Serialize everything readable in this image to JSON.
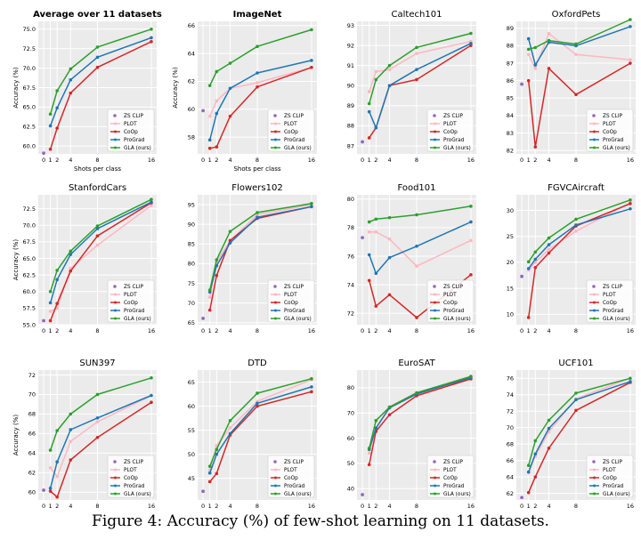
{
  "caption": "Figure 4: Accuracy (%) of few-shot learning on 11 datasets.",
  "chart_data": [
    {
      "type": "line",
      "title": "Average over 11 datasets",
      "title_bold": true,
      "xlabel": "Shots per class",
      "ylabel": "Accuracy (%)",
      "x": [
        1,
        2,
        4,
        8,
        16
      ],
      "xticks": [
        0,
        1,
        2,
        4,
        8,
        16
      ],
      "xlim": [
        -0.8,
        16.8
      ],
      "ylim": [
        59.0,
        76.0
      ],
      "yticks": [
        60.0,
        62.5,
        65.0,
        67.5,
        70.0,
        72.5,
        75.0
      ],
      "ytick_labels": [
        "60.0",
        "62.5",
        "65.0",
        "67.5",
        "70.0",
        "72.5",
        "75.0"
      ],
      "zs_clip": 59.1,
      "series": [
        {
          "name": "PLOT",
          "color": "#ffb6c1",
          "values": [
            null,
            null,
            null,
            null,
            null
          ]
        },
        {
          "name": "CoOp",
          "color": "#d62728",
          "values": [
            59.6,
            62.3,
            66.8,
            70.1,
            73.4
          ]
        },
        {
          "name": "ProGrad",
          "color": "#1f77b4",
          "values": [
            62.6,
            64.9,
            68.5,
            71.4,
            73.9
          ]
        },
        {
          "name": "GLA (ours)",
          "color": "#2ca02c",
          "values": [
            64.1,
            67.1,
            69.9,
            72.7,
            75.0
          ]
        }
      ]
    },
    {
      "type": "line",
      "title": "ImageNet",
      "title_bold": true,
      "xlabel": "Shots per class",
      "ylabel": "Accuracy (%)",
      "x": [
        1,
        2,
        4,
        8,
        16
      ],
      "xticks": [
        0,
        1,
        2,
        4,
        8,
        16
      ],
      "xlim": [
        -0.8,
        16.8
      ],
      "ylim": [
        56.8,
        66.3
      ],
      "yticks": [
        58,
        60,
        62,
        64,
        66
      ],
      "ytick_labels": [
        "58",
        "60",
        "62",
        "64",
        "66"
      ],
      "zs_clip": 59.9,
      "series": [
        {
          "name": "PLOT",
          "color": "#ffb6c1",
          "values": [
            59.5,
            60.6,
            61.5,
            61.9,
            63.0
          ]
        },
        {
          "name": "CoOp",
          "color": "#d62728",
          "values": [
            57.2,
            57.3,
            59.5,
            61.6,
            63.0
          ]
        },
        {
          "name": "ProGrad",
          "color": "#1f77b4",
          "values": [
            57.8,
            59.7,
            61.5,
            62.6,
            63.5
          ]
        },
        {
          "name": "GLA (ours)",
          "color": "#2ca02c",
          "values": [
            61.7,
            62.7,
            63.3,
            64.5,
            65.7
          ]
        }
      ]
    },
    {
      "type": "line",
      "title": "Caltech101",
      "title_bold": false,
      "xlabel": "",
      "ylabel": "",
      "x": [
        1,
        2,
        4,
        8,
        16
      ],
      "xticks": [
        0,
        1,
        2,
        4,
        8,
        16
      ],
      "xlim": [
        -0.8,
        16.8
      ],
      "ylim": [
        86.6,
        93.2
      ],
      "yticks": [
        87,
        88,
        89,
        90,
        91,
        92,
        93
      ],
      "ytick_labels": [
        "87",
        "88",
        "89",
        "90",
        "91",
        "92",
        "93"
      ],
      "zs_clip": 87.2,
      "series": [
        {
          "name": "PLOT",
          "color": "#ffb6c1",
          "values": [
            89.7,
            90.7,
            90.8,
            91.6,
            92.2
          ]
        },
        {
          "name": "CoOp",
          "color": "#d62728",
          "values": [
            87.4,
            87.9,
            90.0,
            90.3,
            92.0
          ]
        },
        {
          "name": "ProGrad",
          "color": "#1f77b4",
          "values": [
            88.7,
            87.9,
            90.0,
            90.8,
            92.1
          ]
        },
        {
          "name": "GLA (ours)",
          "color": "#2ca02c",
          "values": [
            89.1,
            90.3,
            91.0,
            91.9,
            92.6
          ]
        }
      ]
    },
    {
      "type": "line",
      "title": "OxfordPets",
      "title_bold": false,
      "xlabel": "",
      "ylabel": "",
      "x": [
        1,
        2,
        4,
        8,
        16
      ],
      "xticks": [
        0,
        1,
        2,
        4,
        8,
        16
      ],
      "xlim": [
        -0.8,
        16.8
      ],
      "ylim": [
        81.8,
        89.4
      ],
      "yticks": [
        82,
        83,
        84,
        85,
        86,
        87,
        88,
        89
      ],
      "ytick_labels": [
        "82",
        "83",
        "84",
        "85",
        "86",
        "87",
        "88",
        "89"
      ],
      "zs_clip": 85.8,
      "series": [
        {
          "name": "PLOT",
          "color": "#ffb6c1",
          "values": [
            87.5,
            86.7,
            88.7,
            87.5,
            87.2
          ]
        },
        {
          "name": "CoOp",
          "color": "#d62728",
          "values": [
            86.0,
            82.2,
            86.7,
            85.2,
            87.0
          ]
        },
        {
          "name": "ProGrad",
          "color": "#1f77b4",
          "values": [
            88.4,
            86.9,
            88.2,
            88.0,
            89.1
          ]
        },
        {
          "name": "GLA (ours)",
          "color": "#2ca02c",
          "values": [
            87.8,
            87.9,
            88.3,
            88.1,
            89.5
          ]
        }
      ]
    },
    {
      "type": "line",
      "title": "StanfordCars",
      "title_bold": false,
      "xlabel": "",
      "ylabel": "Accuracy (%)",
      "x": [
        1,
        2,
        4,
        8,
        16
      ],
      "xticks": [
        0,
        1,
        2,
        4,
        8,
        16
      ],
      "xlim": [
        -0.8,
        16.8
      ],
      "ylim": [
        55.0,
        74.6
      ],
      "yticks": [
        55.0,
        57.5,
        60.0,
        62.5,
        65.0,
        67.5,
        70.0,
        72.5
      ],
      "ytick_labels": [
        "55.0",
        "57.5",
        "60.0",
        "62.5",
        "65.0",
        "67.5",
        "70.0",
        "72.5"
      ],
      "zs_clip": 55.6,
      "series": [
        {
          "name": "PLOT",
          "color": "#ffb6c1",
          "values": [
            57.0,
            57.5,
            63.5,
            67.0,
            73.0
          ]
        },
        {
          "name": "CoOp",
          "color": "#d62728",
          "values": [
            55.6,
            58.2,
            63.1,
            68.4,
            73.4
          ]
        },
        {
          "name": "ProGrad",
          "color": "#1f77b4",
          "values": [
            58.3,
            61.8,
            65.6,
            69.5,
            73.5
          ]
        },
        {
          "name": "GLA (ours)",
          "color": "#2ca02c",
          "values": [
            60.0,
            63.2,
            66.1,
            69.9,
            73.9
          ]
        }
      ]
    },
    {
      "type": "line",
      "title": "Flowers102",
      "title_bold": false,
      "xlabel": "",
      "ylabel": "",
      "x": [
        1,
        2,
        4,
        8,
        16
      ],
      "xticks": [
        0,
        1,
        2,
        4,
        8,
        16
      ],
      "xlim": [
        -0.8,
        16.8
      ],
      "ylim": [
        64.5,
        97.5
      ],
      "yticks": [
        65,
        70,
        75,
        80,
        85,
        90,
        95
      ],
      "ytick_labels": [
        "65",
        "70",
        "75",
        "80",
        "85",
        "90",
        "95"
      ],
      "zs_clip": 66.1,
      "series": [
        {
          "name": "PLOT",
          "color": "#ffb6c1",
          "values": [
            71.5,
            80.5,
            85.8,
            92.5,
            95.0
          ]
        },
        {
          "name": "CoOp",
          "color": "#d62728",
          "values": [
            68.2,
            77.0,
            85.9,
            91.5,
            94.5
          ]
        },
        {
          "name": "ProGrad",
          "color": "#1f77b4",
          "values": [
            72.8,
            79.5,
            85.3,
            91.8,
            94.5
          ]
        },
        {
          "name": "GLA (ours)",
          "color": "#2ca02c",
          "values": [
            73.3,
            81.0,
            88.2,
            93.0,
            95.3
          ]
        }
      ]
    },
    {
      "type": "line",
      "title": "Food101",
      "title_bold": false,
      "xlabel": "",
      "ylabel": "",
      "x": [
        1,
        2,
        4,
        8,
        16
      ],
      "xticks": [
        0,
        1,
        2,
        4,
        8,
        16
      ],
      "xlim": [
        -0.8,
        16.8
      ],
      "ylim": [
        71.2,
        80.3
      ],
      "yticks": [
        72,
        74,
        76,
        78,
        80
      ],
      "ytick_labels": [
        "72",
        "74",
        "76",
        "78",
        "80"
      ],
      "zs_clip": 77.3,
      "series": [
        {
          "name": "PLOT",
          "color": "#ffb6c1",
          "values": [
            77.7,
            77.7,
            77.2,
            75.3,
            77.1
          ]
        },
        {
          "name": "CoOp",
          "color": "#d62728",
          "values": [
            74.3,
            72.5,
            73.3,
            71.7,
            74.7
          ]
        },
        {
          "name": "ProGrad",
          "color": "#1f77b4",
          "values": [
            76.1,
            74.8,
            75.9,
            76.7,
            78.4
          ]
        },
        {
          "name": "GLA (ours)",
          "color": "#2ca02c",
          "values": [
            78.4,
            78.6,
            78.7,
            78.9,
            79.5
          ]
        }
      ]
    },
    {
      "type": "line",
      "title": "FGVCAircraft",
      "title_bold": false,
      "xlabel": "",
      "ylabel": "",
      "x": [
        1,
        2,
        4,
        8,
        16
      ],
      "xticks": [
        0,
        1,
        2,
        4,
        8,
        16
      ],
      "xlim": [
        -0.8,
        16.8
      ],
      "ylim": [
        8.0,
        33.0
      ],
      "yticks": [
        10,
        15,
        20,
        25,
        30
      ],
      "ytick_labels": [
        "10",
        "15",
        "20",
        "25",
        "30"
      ],
      "zs_clip": 17.3,
      "series": [
        {
          "name": "PLOT",
          "color": "#ffb6c1",
          "values": [
            18.5,
            20.0,
            22.5,
            26.0,
            31.5
          ]
        },
        {
          "name": "CoOp",
          "color": "#d62728",
          "values": [
            9.4,
            19.0,
            21.8,
            27.0,
            31.3
          ]
        },
        {
          "name": "ProGrad",
          "color": "#1f77b4",
          "values": [
            18.8,
            20.6,
            23.4,
            27.2,
            30.3
          ]
        },
        {
          "name": "GLA (ours)",
          "color": "#2ca02c",
          "values": [
            20.1,
            22.0,
            24.7,
            28.3,
            32.0
          ]
        }
      ]
    },
    {
      "type": "line",
      "title": "SUN397",
      "title_bold": false,
      "xlabel": "Shots per class",
      "ylabel": "Accuracy (%)",
      "x": [
        1,
        2,
        4,
        8,
        16
      ],
      "xticks": [
        0,
        1,
        2,
        4,
        8,
        16
      ],
      "xlim": [
        -0.8,
        16.8
      ],
      "ylim": [
        59.2,
        72.5
      ],
      "yticks": [
        60,
        62,
        64,
        66,
        68,
        70,
        72
      ],
      "ytick_labels": [
        "60",
        "62",
        "64",
        "66",
        "68",
        "70",
        "72"
      ],
      "zs_clip": 60.2,
      "series": [
        {
          "name": "PLOT",
          "color": "#ffb6c1",
          "values": [
            62.5,
            61.6,
            65.2,
            67.2,
            69.9
          ]
        },
        {
          "name": "CoOp",
          "color": "#d62728",
          "values": [
            60.1,
            59.5,
            63.3,
            65.6,
            69.2
          ]
        },
        {
          "name": "ProGrad",
          "color": "#1f77b4",
          "values": [
            60.4,
            63.1,
            66.4,
            67.6,
            69.9
          ]
        },
        {
          "name": "GLA (ours)",
          "color": "#2ca02c",
          "values": [
            64.3,
            66.3,
            68.0,
            70.0,
            71.7
          ]
        }
      ]
    },
    {
      "type": "line",
      "title": "DTD",
      "title_bold": false,
      "xlabel": "Shots per class",
      "ylabel": "",
      "x": [
        1,
        2,
        4,
        8,
        16
      ],
      "xticks": [
        0,
        1,
        2,
        4,
        8,
        16
      ],
      "xlim": [
        -0.8,
        16.8
      ],
      "ylim": [
        40.5,
        67.5
      ],
      "yticks": [
        45,
        50,
        55,
        60,
        65
      ],
      "ytick_labels": [
        "45",
        "50",
        "55",
        "60",
        "65"
      ],
      "zs_clip": 42.3,
      "series": [
        {
          "name": "PLOT",
          "color": "#ffb6c1",
          "values": [
            46.7,
            51.8,
            55.5,
            61.0,
            65.5
          ]
        },
        {
          "name": "CoOp",
          "color": "#d62728",
          "values": [
            44.3,
            46.0,
            54.0,
            60.0,
            63.0
          ]
        },
        {
          "name": "ProGrad",
          "color": "#1f77b4",
          "values": [
            46.1,
            50.0,
            54.3,
            60.6,
            64.0
          ]
        },
        {
          "name": "GLA (ours)",
          "color": "#2ca02c",
          "values": [
            47.5,
            51.0,
            57.0,
            62.7,
            65.7
          ]
        }
      ]
    },
    {
      "type": "line",
      "title": "EuroSAT",
      "title_bold": false,
      "xlabel": "Shots per class",
      "ylabel": "",
      "x": [
        1,
        2,
        4,
        8,
        16
      ],
      "xticks": [
        0,
        1,
        2,
        4,
        8,
        16
      ],
      "xlim": [
        -0.8,
        16.8
      ],
      "ylim": [
        35.5,
        87.0
      ],
      "yticks": [
        40,
        50,
        60,
        70,
        80
      ],
      "ytick_labels": [
        "40",
        "50",
        "60",
        "70",
        "80"
      ],
      "zs_clip": 37.6,
      "series": [
        {
          "name": "PLOT",
          "color": "#ffb6c1",
          "values": [
            54.0,
            64.0,
            72.5,
            78.0,
            83.5
          ]
        },
        {
          "name": "CoOp",
          "color": "#d62728",
          "values": [
            49.5,
            62.7,
            69.3,
            76.8,
            83.5
          ]
        },
        {
          "name": "ProGrad",
          "color": "#1f77b4",
          "values": [
            55.5,
            64.0,
            72.0,
            77.5,
            84.0
          ]
        },
        {
          "name": "GLA (ours)",
          "color": "#2ca02c",
          "values": [
            56.0,
            67.0,
            72.3,
            78.0,
            84.5
          ]
        }
      ]
    },
    {
      "type": "line",
      "title": "UCF101",
      "title_bold": false,
      "xlabel": "Shots per class",
      "ylabel": "",
      "x": [
        1,
        2,
        4,
        8,
        16
      ],
      "xticks": [
        0,
        1,
        2,
        4,
        8,
        16
      ],
      "xlim": [
        -0.8,
        16.8
      ],
      "ylim": [
        61.2,
        77.0
      ],
      "yticks": [
        62,
        64,
        66,
        68,
        70,
        72,
        74,
        76
      ],
      "ytick_labels": [
        "62",
        "64",
        "66",
        "68",
        "70",
        "72",
        "74",
        "76"
      ],
      "zs_clip": 61.5,
      "series": [
        {
          "name": "PLOT",
          "color": "#ffb6c1",
          "values": [
            64.5,
            66.5,
            69.5,
            73.5,
            76.0
          ]
        },
        {
          "name": "CoOp",
          "color": "#d62728",
          "values": [
            62.1,
            64.0,
            67.5,
            72.1,
            75.5
          ]
        },
        {
          "name": "ProGrad",
          "color": "#1f77b4",
          "values": [
            64.6,
            66.8,
            69.9,
            73.4,
            75.6
          ]
        },
        {
          "name": "GLA (ours)",
          "color": "#2ca02c",
          "values": [
            65.4,
            68.4,
            70.9,
            74.2,
            76.0
          ]
        }
      ]
    }
  ],
  "legend": {
    "entries": [
      {
        "name": "ZS CLIP",
        "color": "#9467bd",
        "marker": "dot"
      },
      {
        "name": "PLOT",
        "color": "#ffb6c1",
        "marker": "line"
      },
      {
        "name": "CoOp",
        "color": "#d62728",
        "marker": "line"
      },
      {
        "name": "ProGrad",
        "color": "#1f77b4",
        "marker": "line"
      },
      {
        "name": "GLA (ours)",
        "color": "#2ca02c",
        "marker": "line"
      }
    ],
    "placement": "lower-right"
  }
}
